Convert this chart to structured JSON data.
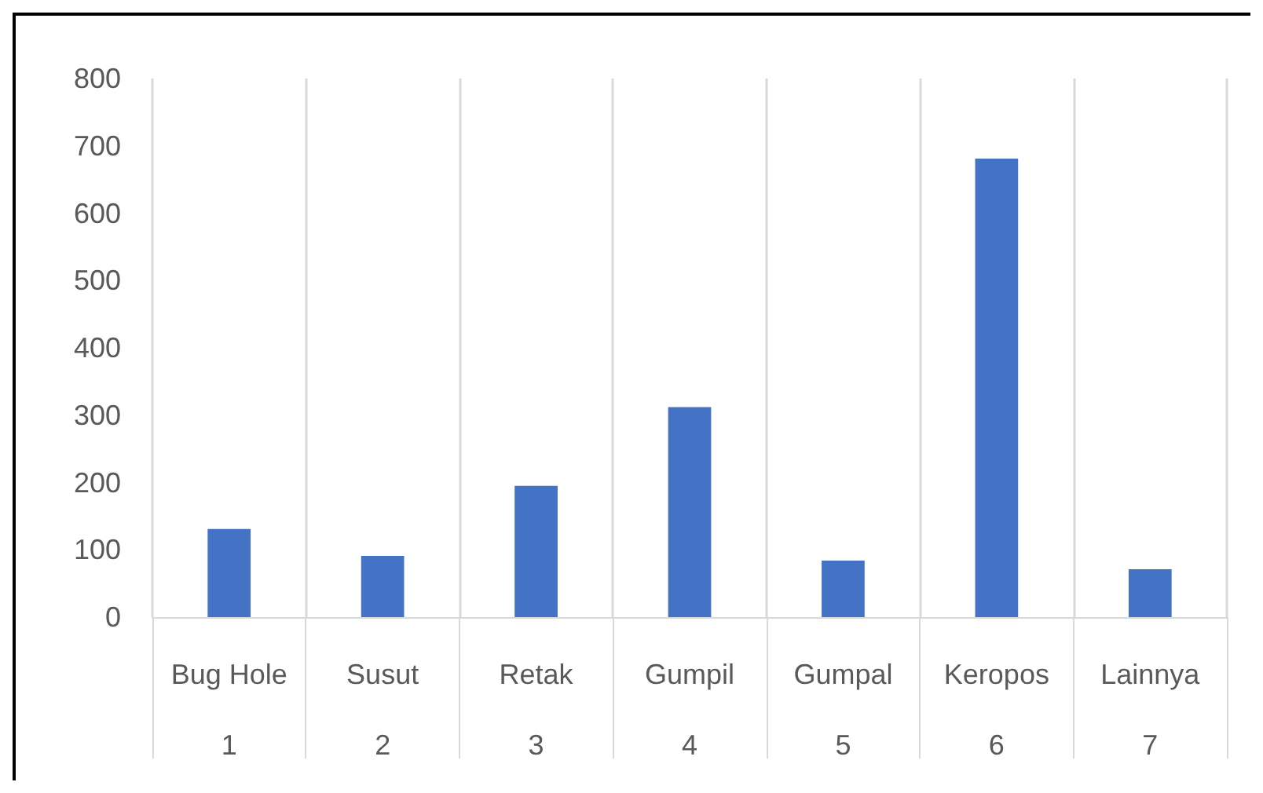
{
  "chart_data": {
    "type": "bar",
    "categories": [
      "Bug Hole\n1",
      "Susut\n2",
      "Retak\n3",
      "Gumpil\n4",
      "Gumpal\n5",
      "Keropos\n6",
      "Lainnya\n7"
    ],
    "values": [
      131,
      91,
      195,
      312,
      84,
      681,
      71
    ],
    "color": "#4472c4",
    "ylim": [
      0,
      800
    ],
    "yticks": [
      0,
      100,
      200,
      300,
      400,
      500,
      600,
      700,
      800
    ],
    "grid": "x"
  }
}
